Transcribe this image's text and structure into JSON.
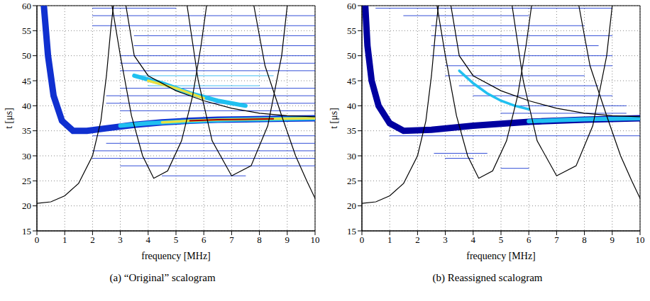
{
  "chart_data": [
    {
      "type": "line",
      "title": "(a) “Original” scalogram",
      "x_label": "frequency [MHz]",
      "y_label": "t [μs]",
      "xlim": [
        0,
        10
      ],
      "ylim": [
        15,
        60
      ],
      "xticks": [
        0,
        1,
        2,
        3,
        4,
        5,
        6,
        7,
        8,
        9,
        10
      ],
      "yticks": [
        15,
        20,
        25,
        30,
        35,
        40,
        45,
        50,
        55,
        60
      ],
      "grid": true,
      "series": [
        {
          "color": "#1030d0",
          "line_style": "thin",
          "x": [
            4.5,
            7.5
          ],
          "values": [
            26,
            26
          ]
        },
        {
          "color": "#1030d0",
          "line_style": "thin",
          "x": [
            3,
            10
          ],
          "values": [
            28,
            28
          ]
        },
        {
          "color": "#1030d0",
          "line_style": "thin",
          "x": [
            2,
            10
          ],
          "values": [
            29.5,
            29.5
          ]
        },
        {
          "color": "#1030d0",
          "line_style": "thin",
          "x": [
            2,
            10
          ],
          "values": [
            31,
            31
          ]
        },
        {
          "color": "#1030d0",
          "line_style": "thin",
          "x": [
            2.5,
            10
          ],
          "values": [
            32.5,
            32.5
          ]
        },
        {
          "color": "#1030d0",
          "line_style": "thin",
          "x": [
            2,
            10
          ],
          "values": [
            34,
            34
          ]
        },
        {
          "color": "#1030d0",
          "line_style": "thin",
          "x": [
            3,
            10
          ],
          "values": [
            39,
            39
          ]
        },
        {
          "color": "#1030d0",
          "line_style": "thin",
          "x": [
            2.5,
            10
          ],
          "values": [
            40.5,
            40.5
          ]
        },
        {
          "color": "#1030d0",
          "line_style": "thin",
          "x": [
            2.5,
            10
          ],
          "values": [
            42,
            42
          ]
        },
        {
          "color": "#1030d0",
          "line_style": "thin",
          "x": [
            3,
            10
          ],
          "values": [
            43.5,
            43.5
          ]
        },
        {
          "color": "#1030d0",
          "line_style": "thin",
          "x": [
            3,
            10
          ],
          "values": [
            47,
            47
          ]
        },
        {
          "color": "#1030d0",
          "line_style": "thin",
          "x": [
            3,
            10
          ],
          "values": [
            48.5,
            48.5
          ]
        },
        {
          "color": "#1030d0",
          "line_style": "thin",
          "x": [
            3,
            10
          ],
          "values": [
            50,
            50
          ]
        },
        {
          "color": "#1030d0",
          "line_style": "thin",
          "x": [
            3.5,
            10
          ],
          "values": [
            52,
            52
          ]
        },
        {
          "color": "#1030d0",
          "line_style": "thin",
          "x": [
            3.5,
            10
          ],
          "values": [
            54,
            54
          ]
        },
        {
          "color": "#1030d0",
          "line_style": "thin",
          "x": [
            2,
            10
          ],
          "values": [
            56,
            56
          ]
        },
        {
          "color": "#1030d0",
          "line_style": "thin",
          "x": [
            2,
            10
          ],
          "values": [
            58,
            58
          ]
        },
        {
          "color": "#1030d0",
          "line_style": "thin",
          "x": [
            2,
            5
          ],
          "values": [
            59.5,
            59.5
          ]
        },
        {
          "color": "#20b0f0",
          "line_style": "thin",
          "x": [
            4,
            8
          ],
          "values": [
            44,
            44
          ]
        },
        {
          "color": "#20b0f0",
          "line_style": "thin",
          "x": [
            3.5,
            8.5
          ],
          "values": [
            46,
            46
          ]
        },
        {
          "color": "#1030d0",
          "line_style": "band",
          "x": [
            0.25,
            0.4,
            0.6,
            0.9,
            1.3,
            1.8,
            2.5,
            3.5,
            4.5,
            5.5,
            6.5,
            7.5,
            8.5,
            10
          ],
          "values": [
            60,
            50,
            42,
            37,
            35,
            35,
            35.5,
            36.2,
            36.7,
            37,
            37.2,
            37.3,
            37.4,
            37.5
          ]
        },
        {
          "color": "#20c0f0",
          "line_style": "thick",
          "x": [
            3.5,
            4.5,
            5.5,
            6.5,
            7.5
          ],
          "values": [
            46,
            44.5,
            42.5,
            41,
            40
          ]
        },
        {
          "color": "#e8e040",
          "line_style": "medium",
          "x": [
            4,
            5,
            6
          ],
          "values": [
            45,
            43.5,
            41.5
          ]
        },
        {
          "color": "#20c0f0",
          "line_style": "thick",
          "x": [
            3,
            4,
            5,
            6,
            7,
            8,
            9,
            10
          ],
          "values": [
            36,
            36.5,
            36.8,
            37,
            37.2,
            37.3,
            37.4,
            37.5
          ]
        },
        {
          "color": "#e8e040",
          "line_style": "medium",
          "x": [
            4.5,
            5.5,
            6.5,
            7.5,
            8.5,
            10
          ],
          "values": [
            36.7,
            37,
            37.2,
            37.3,
            37.4,
            37.5
          ]
        },
        {
          "color": "#a00000",
          "line_style": "core",
          "x": [
            5.5,
            6.5,
            7.5,
            8.5
          ],
          "values": [
            37,
            37.2,
            37.3,
            37.4
          ]
        },
        {
          "color": "#000000",
          "line_style": "solid",
          "x": [
            0,
            0.5,
            1,
            1.5,
            2,
            2.3,
            2.5,
            2.65,
            2.75
          ],
          "values": [
            20.5,
            20.8,
            22,
            24.5,
            30,
            37,
            46,
            55,
            60
          ]
        },
        {
          "color": "#000000",
          "line_style": "solid",
          "x": [
            2.7,
            3,
            3.4,
            3.8,
            4.2,
            4.7,
            5.2,
            5.6,
            5.9,
            6.1
          ],
          "values": [
            60,
            50,
            38,
            30,
            25.5,
            27,
            33,
            42,
            52,
            60
          ]
        },
        {
          "color": "#000000",
          "line_style": "solid",
          "x": [
            5.4,
            5.8,
            6.3,
            7,
            7.7,
            8.3,
            8.8,
            9
          ],
          "values": [
            60,
            45,
            33,
            26,
            28,
            36,
            50,
            60
          ]
        },
        {
          "color": "#000000",
          "line_style": "solid",
          "x": [
            3.2,
            3.5,
            4,
            5,
            6,
            7,
            8,
            9,
            10
          ],
          "values": [
            60,
            50,
            46,
            43,
            41,
            39.5,
            38.5,
            38,
            37.8
          ]
        },
        {
          "color": "#000000",
          "line_style": "solid",
          "x": [
            7.8,
            8.2,
            8.8,
            9.3,
            9.7,
            10
          ],
          "values": [
            60,
            48,
            38,
            30,
            25,
            21.5
          ]
        }
      ]
    },
    {
      "type": "line",
      "title": "(b) Reassigned scalogram",
      "x_label": "frequency [MHz]",
      "y_label": "t [μs]",
      "xlim": [
        0,
        10
      ],
      "ylim": [
        15,
        60
      ],
      "xticks": [
        0,
        1,
        2,
        3,
        4,
        5,
        6,
        7,
        8,
        9,
        10
      ],
      "yticks": [
        15,
        20,
        25,
        30,
        35,
        40,
        45,
        50,
        55,
        60
      ],
      "grid": true,
      "series": [
        {
          "color": "#1030d0",
          "line_style": "thin",
          "x": [
            5,
            9.5
          ],
          "values": [
            38.5,
            38.5
          ]
        },
        {
          "color": "#1030d0",
          "line_style": "thin",
          "x": [
            5.5,
            9.5
          ],
          "values": [
            40,
            40
          ]
        },
        {
          "color": "#1030d0",
          "line_style": "thin",
          "x": [
            4,
            9
          ],
          "values": [
            42,
            42
          ]
        },
        {
          "color": "#1030d0",
          "line_style": "thin",
          "x": [
            3.5,
            8.5
          ],
          "values": [
            44,
            44
          ]
        },
        {
          "color": "#1030d0",
          "line_style": "thin",
          "x": [
            3,
            8
          ],
          "values": [
            46,
            46
          ]
        },
        {
          "color": "#1030d0",
          "line_style": "thin",
          "x": [
            3,
            9
          ],
          "values": [
            48,
            48
          ]
        },
        {
          "color": "#1030d0",
          "line_style": "thin",
          "x": [
            2.5,
            9
          ],
          "values": [
            50,
            50
          ]
        },
        {
          "color": "#1030d0",
          "line_style": "thin",
          "x": [
            2.5,
            8.5
          ],
          "values": [
            52,
            52
          ]
        },
        {
          "color": "#1030d0",
          "line_style": "thin",
          "x": [
            2.5,
            9
          ],
          "values": [
            54,
            54
          ]
        },
        {
          "color": "#1030d0",
          "line_style": "thin",
          "x": [
            2.5,
            8
          ],
          "values": [
            56,
            56
          ]
        },
        {
          "color": "#1030d0",
          "line_style": "thin",
          "x": [
            1.5,
            6
          ],
          "values": [
            58,
            58
          ]
        },
        {
          "color": "#1030d0",
          "line_style": "thin",
          "x": [
            0.5,
            9
          ],
          "values": [
            59.5,
            59.5
          ]
        },
        {
          "color": "#1030d0",
          "line_style": "thin",
          "x": [
            2.6,
            4.5
          ],
          "values": [
            30.5,
            30.5
          ]
        },
        {
          "color": "#1030d0",
          "line_style": "thin",
          "x": [
            3,
            4
          ],
          "values": [
            29.5,
            29.5
          ]
        },
        {
          "color": "#1030d0",
          "line_style": "thin",
          "x": [
            5,
            6
          ],
          "values": [
            27.5,
            27.5
          ]
        },
        {
          "color": "#1030d0",
          "line_style": "thin",
          "x": [
            1,
            10
          ],
          "values": [
            34,
            34
          ]
        },
        {
          "color": "#0000a0",
          "line_style": "band",
          "x": [
            0.12,
            0.2,
            0.35,
            0.6,
            1,
            1.5,
            2.5,
            4,
            6,
            8,
            10
          ],
          "values": [
            60,
            52,
            45,
            40,
            36.5,
            35,
            35.2,
            36,
            36.8,
            37.2,
            37.5
          ]
        },
        {
          "color": "#20c0f0",
          "line_style": "medium",
          "x": [
            3.5,
            4,
            4.5,
            5,
            5.5,
            6
          ],
          "values": [
            47,
            44.5,
            42.5,
            41,
            40,
            39.3
          ]
        },
        {
          "color": "#20c0f0",
          "line_style": "thick",
          "x": [
            6,
            7,
            8,
            9,
            10
          ],
          "values": [
            36.9,
            37.1,
            37.3,
            37.4,
            37.5
          ]
        },
        {
          "color": "#000000",
          "line_style": "solid",
          "x": [
            0,
            0.5,
            1,
            1.5,
            2,
            2.3,
            2.5,
            2.65,
            2.75
          ],
          "values": [
            20.5,
            20.8,
            22,
            24.5,
            30,
            37,
            46,
            55,
            60
          ]
        },
        {
          "color": "#000000",
          "line_style": "solid",
          "x": [
            2.7,
            3,
            3.4,
            3.8,
            4.2,
            4.7,
            5.2,
            5.6,
            5.9,
            6.1
          ],
          "values": [
            60,
            50,
            38,
            30,
            25.5,
            27,
            33,
            42,
            52,
            60
          ]
        },
        {
          "color": "#000000",
          "line_style": "solid",
          "x": [
            5.4,
            5.8,
            6.3,
            7,
            7.7,
            8.3,
            8.8,
            9
          ],
          "values": [
            60,
            45,
            33,
            26,
            28,
            36,
            50,
            60
          ]
        },
        {
          "color": "#000000",
          "line_style": "solid",
          "x": [
            3.2,
            3.5,
            4,
            5,
            6,
            7,
            8,
            9,
            10
          ],
          "values": [
            60,
            50,
            46,
            43,
            41,
            39.5,
            38.5,
            38,
            37.8
          ]
        },
        {
          "color": "#000000",
          "line_style": "solid",
          "x": [
            7.8,
            8.2,
            8.8,
            9.3,
            9.7,
            10
          ],
          "values": [
            60,
            48,
            38,
            30,
            25,
            21.5
          ]
        }
      ]
    }
  ]
}
